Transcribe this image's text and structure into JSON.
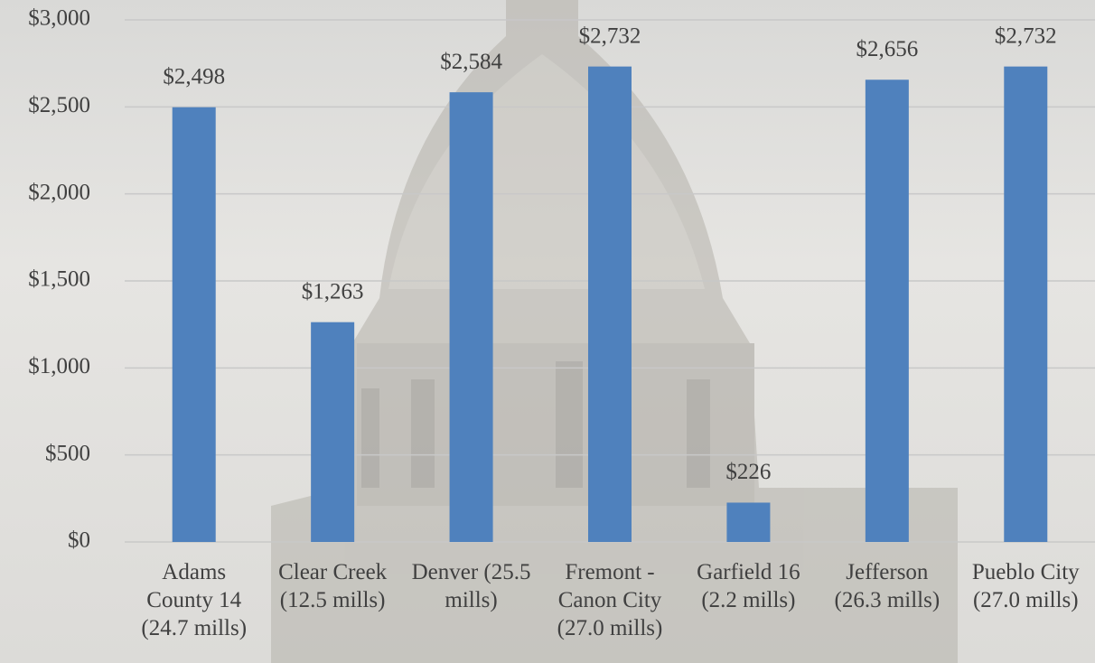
{
  "chart_data": {
    "type": "bar",
    "categories": [
      "Adams County 14 (24.7 mills)",
      "Clear Creek (12.5 mills)",
      "Denver (25.5 mills)",
      "Fremont - Canon City (27.0 mills)",
      "Garfield 16 (2.2 mills)",
      "Jefferson (26.3 mills)",
      "Pueblo City (27.0 mills)"
    ],
    "values": [
      2498,
      1263,
      2584,
      2732,
      226,
      2656,
      2732
    ],
    "value_labels": [
      "$2,498",
      "$1,263",
      "$2,584",
      "$2,732",
      "$226",
      "$2,656",
      "$2,732"
    ],
    "color": "#4f81bd",
    "ylim": [
      0,
      3000
    ],
    "yticks": [
      {
        "value": 0,
        "label": "$0"
      },
      {
        "value": 500,
        "label": "$500"
      },
      {
        "value": 1000,
        "label": "$1,000"
      },
      {
        "value": 1500,
        "label": "$1,500"
      },
      {
        "value": 2000,
        "label": "$2,000"
      },
      {
        "value": 2500,
        "label": "$2,500"
      },
      {
        "value": 3000,
        "label": "$3,000"
      }
    ],
    "grid": true
  }
}
